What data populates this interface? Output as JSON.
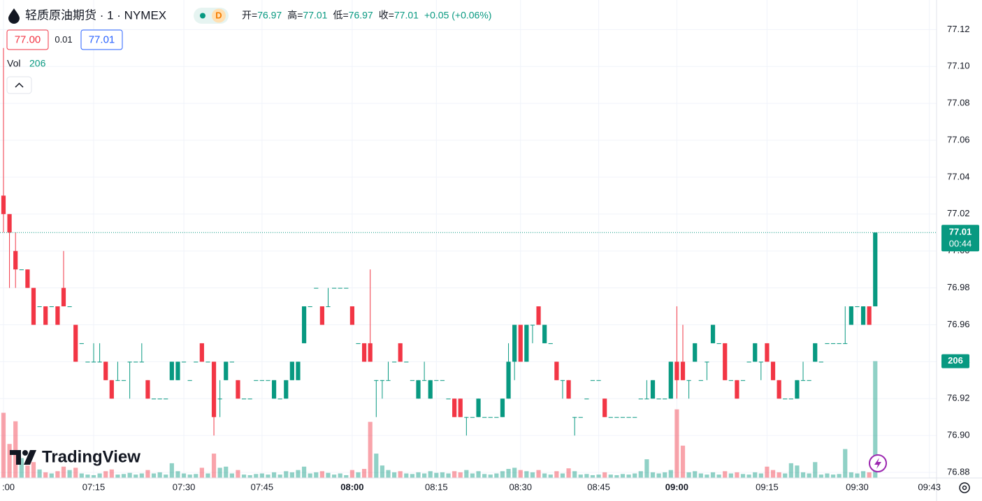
{
  "header": {
    "title": "轻质原油期货 · 1 · NYMEX",
    "badge": "D",
    "ohlc": [
      {
        "name": "开=",
        "value": "76.97"
      },
      {
        "name": "高=",
        "value": "77.01"
      },
      {
        "name": "低=",
        "value": "76.97"
      },
      {
        "name": "收=",
        "value": "77.01"
      }
    ],
    "change": "+0.05 (+0.06%)",
    "bid": "77.00",
    "spread": "0.01",
    "ask": "77.01",
    "vol_label": "Vol",
    "vol_value": "206"
  },
  "watermark": "TradingView",
  "chart_data": {
    "type": "candlestick",
    "up_color": "#089981",
    "down_color": "#f23645",
    "grid": true,
    "xlim": [
      -0.58,
      155.2
    ],
    "xticks": [
      {
        "value": 0,
        "label": ":00"
      },
      {
        "value": 15,
        "label": "07:15"
      },
      {
        "value": 30,
        "label": "07:30"
      },
      {
        "value": 43,
        "label": "07:45"
      },
      {
        "value": 58,
        "label": "08:00"
      },
      {
        "value": 72,
        "label": "08:15"
      },
      {
        "value": 86,
        "label": "08:30"
      },
      {
        "value": 99,
        "label": "08:45"
      },
      {
        "value": 112,
        "label": "09:00"
      },
      {
        "value": 127,
        "label": "09:15"
      },
      {
        "value": 142,
        "label": "09:30"
      },
      {
        "value": 154,
        "label": "09:43"
      }
    ],
    "ylim": [
      76.877,
      77.136
    ],
    "yticks": [
      76.88,
      {
        "value": 76.9,
        "label": "76.90"
      },
      76.92,
      76.94,
      76.96,
      76.98,
      {
        "value": 77.0,
        "label": "77.00"
      },
      77.02,
      77.04,
      77.06,
      77.08,
      {
        "value": 77.1,
        "label": "77.10"
      },
      77.12
    ],
    "volume_lim": [
      0,
      843
    ],
    "open": [
      77.03,
      77.02,
      77.0,
      76.99,
      76.99,
      76.98,
      76.97,
      76.97,
      76.97,
      76.97,
      76.98,
      76.97,
      76.96,
      76.95,
      76.94,
      76.94,
      76.94,
      76.94,
      76.93,
      76.93,
      76.93,
      76.94,
      76.94,
      76.94,
      76.93,
      76.92,
      76.92,
      76.92,
      76.93,
      76.93,
      76.94,
      76.93,
      76.94,
      76.95,
      76.94,
      76.94,
      76.92,
      76.93,
      76.94,
      76.93,
      76.92,
      76.92,
      76.93,
      76.93,
      76.93,
      76.92,
      76.92,
      76.92,
      76.93,
      76.93,
      76.95,
      76.97,
      76.98,
      76.97,
      76.97,
      76.98,
      76.98,
      76.98,
      76.97,
      76.95,
      76.95,
      76.95,
      76.93,
      76.93,
      76.93,
      76.94,
      76.95,
      76.94,
      76.93,
      76.92,
      76.93,
      76.92,
      76.93,
      76.93,
      76.92,
      76.92,
      76.92,
      76.91,
      76.91,
      76.91,
      76.91,
      76.91,
      76.91,
      76.91,
      76.92,
      76.94,
      76.96,
      76.94,
      76.96,
      76.97,
      76.95,
      76.95,
      76.94,
      76.93,
      76.93,
      76.91,
      76.91,
      76.92,
      76.93,
      76.93,
      76.92,
      76.91,
      76.91,
      76.91,
      76.91,
      76.91,
      76.92,
      76.92,
      76.92,
      76.92,
      76.92,
      76.92,
      76.94,
      76.94,
      76.93,
      76.94,
      76.93,
      76.94,
      76.95,
      76.95,
      76.95,
      76.93,
      76.93,
      76.93,
      76.94,
      76.94,
      76.94,
      76.95,
      76.94,
      76.93,
      76.92,
      76.92,
      76.92,
      76.93,
      76.93,
      76.94,
      76.94,
      76.95,
      76.95,
      76.95,
      76.95,
      76.96,
      76.97,
      76.96,
      76.97,
      76.97
    ],
    "high": [
      77.11,
      77.02,
      77.01,
      76.99,
      76.99,
      76.98,
      76.97,
      76.97,
      76.97,
      76.97,
      77.0,
      76.97,
      76.96,
      76.95,
      76.94,
      76.95,
      76.95,
      76.94,
      76.93,
      76.94,
      76.93,
      76.94,
      76.94,
      76.95,
      76.93,
      76.92,
      76.92,
      76.92,
      76.94,
      76.94,
      76.94,
      76.93,
      76.94,
      76.95,
      76.94,
      76.94,
      76.93,
      76.94,
      76.94,
      76.93,
      76.92,
      76.92,
      76.93,
      76.93,
      76.93,
      76.93,
      76.92,
      76.93,
      76.94,
      76.94,
      76.97,
      76.97,
      76.98,
      76.97,
      76.98,
      76.98,
      76.98,
      76.98,
      76.97,
      76.95,
      76.95,
      76.99,
      76.93,
      76.93,
      76.94,
      76.94,
      76.95,
      76.94,
      76.93,
      76.93,
      76.94,
      76.93,
      76.93,
      76.93,
      76.92,
      76.92,
      76.92,
      76.91,
      76.91,
      76.92,
      76.91,
      76.91,
      76.91,
      76.92,
      76.95,
      76.96,
      76.96,
      76.96,
      76.96,
      76.97,
      76.96,
      76.95,
      76.94,
      76.93,
      76.93,
      76.91,
      76.91,
      76.92,
      76.93,
      76.93,
      76.92,
      76.91,
      76.91,
      76.91,
      76.91,
      76.91,
      76.92,
      76.93,
      76.93,
      76.92,
      76.92,
      76.94,
      76.97,
      76.96,
      76.93,
      76.95,
      76.93,
      76.94,
      76.96,
      76.95,
      76.95,
      76.93,
      76.93,
      76.93,
      76.94,
      76.95,
      76.94,
      76.95,
      76.94,
      76.93,
      76.92,
      76.92,
      76.93,
      76.94,
      76.93,
      76.95,
      76.94,
      76.95,
      76.95,
      76.95,
      76.97,
      76.97,
      76.97,
      76.97,
      76.97,
      77.01
    ],
    "low": [
      77.01,
      76.98,
      76.98,
      76.99,
      76.98,
      76.96,
      76.97,
      76.96,
      76.97,
      76.96,
      76.97,
      76.97,
      76.94,
      76.95,
      76.94,
      76.94,
      76.94,
      76.93,
      76.92,
      76.93,
      76.93,
      76.92,
      76.94,
      76.94,
      76.92,
      76.92,
      76.92,
      76.92,
      76.93,
      76.93,
      76.94,
      76.93,
      76.94,
      76.94,
      76.94,
      76.9,
      76.91,
      76.93,
      76.94,
      76.92,
      76.92,
      76.92,
      76.93,
      76.93,
      76.93,
      76.92,
      76.92,
      76.92,
      76.93,
      76.93,
      76.95,
      76.97,
      76.98,
      76.96,
      76.97,
      76.98,
      76.98,
      76.98,
      76.96,
      76.95,
      76.94,
      76.94,
      76.91,
      76.92,
      76.93,
      76.94,
      76.94,
      76.94,
      76.93,
      76.92,
      76.93,
      76.92,
      76.93,
      76.93,
      76.92,
      76.91,
      76.91,
      76.9,
      76.91,
      76.91,
      76.91,
      76.91,
      76.91,
      76.91,
      76.92,
      76.93,
      76.94,
      76.94,
      76.95,
      76.96,
      76.95,
      76.95,
      76.93,
      76.92,
      76.92,
      76.9,
      76.91,
      76.92,
      76.93,
      76.93,
      76.91,
      76.91,
      76.91,
      76.91,
      76.91,
      76.91,
      76.92,
      76.92,
      76.92,
      76.92,
      76.92,
      76.92,
      76.92,
      76.93,
      76.92,
      76.94,
      76.93,
      76.93,
      76.95,
      76.95,
      76.93,
      76.93,
      76.92,
      76.93,
      76.94,
      76.94,
      76.93,
      76.94,
      76.93,
      76.92,
      76.92,
      76.92,
      76.92,
      76.93,
      76.93,
      76.94,
      76.94,
      76.95,
      76.95,
      76.95,
      76.95,
      76.96,
      76.97,
      76.96,
      76.96,
      76.97
    ],
    "close": [
      77.02,
      77.01,
      76.99,
      76.99,
      76.98,
      76.96,
      76.97,
      76.96,
      76.97,
      76.96,
      76.97,
      76.97,
      76.94,
      76.95,
      76.94,
      76.94,
      76.94,
      76.93,
      76.92,
      76.93,
      76.93,
      76.94,
      76.94,
      76.94,
      76.92,
      76.92,
      76.92,
      76.92,
      76.94,
      76.94,
      76.94,
      76.93,
      76.94,
      76.94,
      76.94,
      76.91,
      76.92,
      76.94,
      76.94,
      76.92,
      76.92,
      76.92,
      76.93,
      76.93,
      76.93,
      76.93,
      76.92,
      76.93,
      76.94,
      76.94,
      76.97,
      76.97,
      76.98,
      76.96,
      76.97,
      76.98,
      76.98,
      76.98,
      76.96,
      76.95,
      76.94,
      76.94,
      76.93,
      76.93,
      76.93,
      76.94,
      76.94,
      76.94,
      76.93,
      76.93,
      76.93,
      76.93,
      76.93,
      76.93,
      76.92,
      76.91,
      76.91,
      76.91,
      76.91,
      76.92,
      76.91,
      76.91,
      76.91,
      76.92,
      76.94,
      76.96,
      76.94,
      76.96,
      76.96,
      76.96,
      76.96,
      76.95,
      76.93,
      76.93,
      76.92,
      76.91,
      76.91,
      76.92,
      76.93,
      76.93,
      76.91,
      76.91,
      76.91,
      76.91,
      76.91,
      76.91,
      76.92,
      76.92,
      76.93,
      76.92,
      76.92,
      76.94,
      76.93,
      76.93,
      76.93,
      76.95,
      76.93,
      76.94,
      76.96,
      76.95,
      76.93,
      76.93,
      76.92,
      76.93,
      76.94,
      76.95,
      76.94,
      76.94,
      76.93,
      76.92,
      76.92,
      76.92,
      76.93,
      76.93,
      76.93,
      76.95,
      76.94,
      76.95,
      76.95,
      76.95,
      76.95,
      76.97,
      76.97,
      76.97,
      76.96,
      77.01
    ],
    "volume": [
      115,
      60,
      100,
      35,
      22,
      28,
      15,
      10,
      8,
      12,
      20,
      14,
      18,
      8,
      6,
      5,
      8,
      12,
      15,
      6,
      7,
      9,
      6,
      8,
      14,
      8,
      10,
      6,
      26,
      12,
      8,
      6,
      7,
      18,
      8,
      43,
      18,
      20,
      8,
      14,
      6,
      5,
      7,
      8,
      6,
      10,
      6,
      12,
      10,
      14,
      20,
      8,
      10,
      12,
      9,
      6,
      8,
      5,
      14,
      10,
      16,
      99,
      43,
      22,
      14,
      10,
      12,
      8,
      7,
      10,
      8,
      12,
      9,
      10,
      8,
      12,
      10,
      14,
      8,
      12,
      7,
      6,
      8,
      12,
      16,
      18,
      14,
      12,
      10,
      14,
      8,
      6,
      12,
      8,
      17,
      12,
      6,
      7,
      5,
      6,
      10,
      6,
      5,
      7,
      6,
      8,
      12,
      33,
      10,
      8,
      10,
      14,
      121,
      57,
      10,
      12,
      8,
      6,
      10,
      6,
      12,
      8,
      10,
      7,
      6,
      10,
      8,
      20,
      14,
      10,
      8,
      26,
      22,
      10,
      8,
      28,
      6,
      8,
      6,
      7,
      51,
      10,
      8,
      12,
      10,
      206
    ],
    "price_tag": {
      "price": 77.01,
      "countdown": "00:44"
    },
    "volume_tag": 206
  }
}
